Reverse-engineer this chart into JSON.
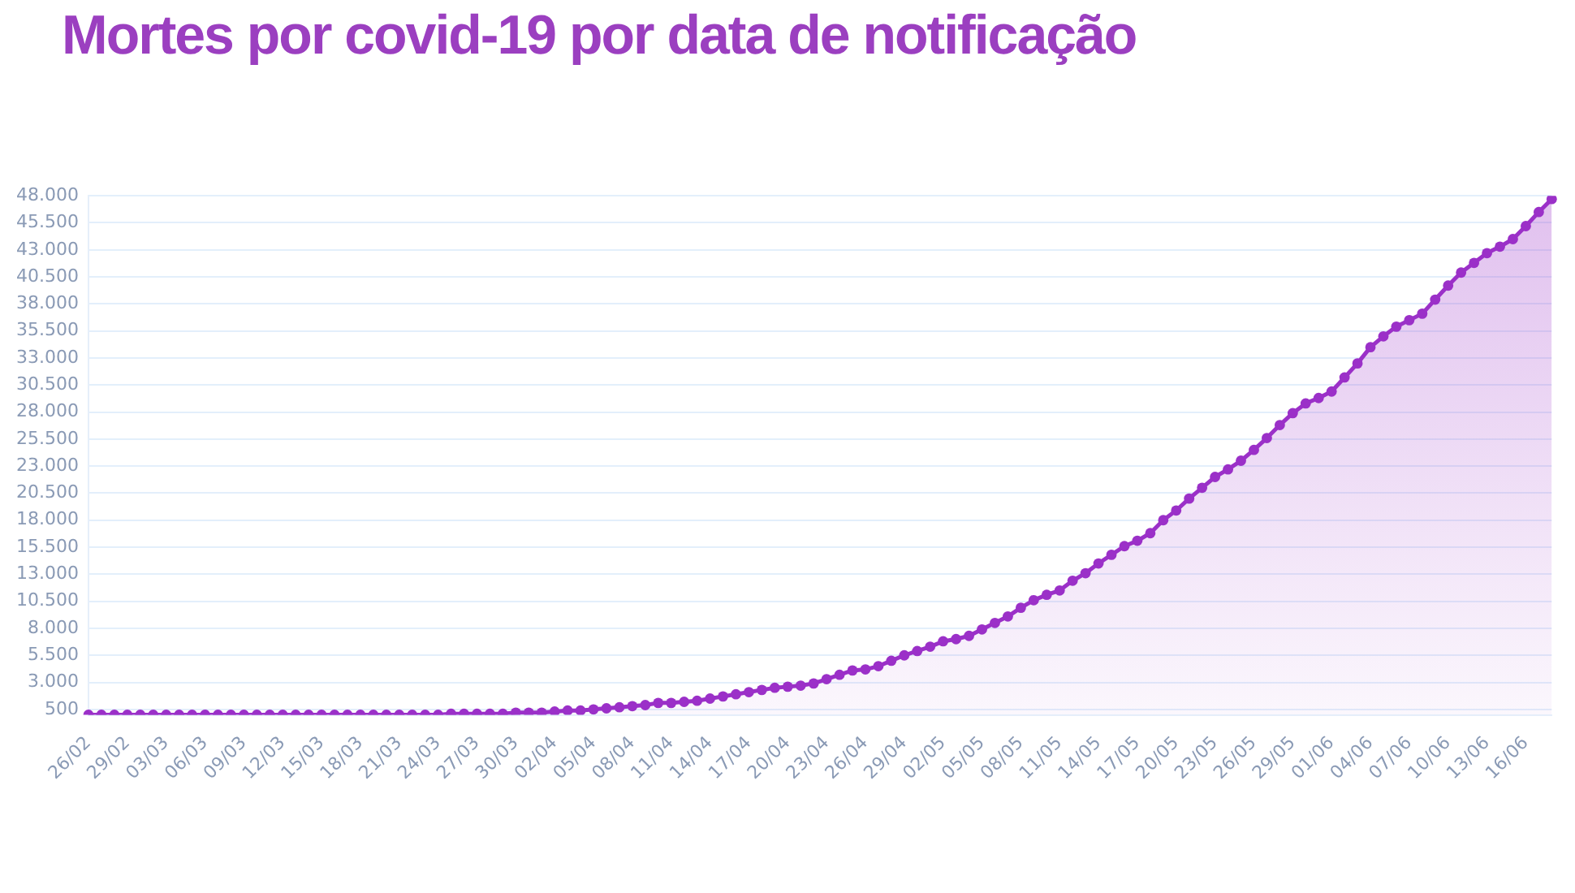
{
  "chart_data": {
    "type": "area",
    "title": "Mortes por covid-19 por data de notificação",
    "categories": [
      "26/02",
      null,
      null,
      "29/02",
      null,
      null,
      "03/03",
      null,
      null,
      "06/03",
      null,
      null,
      "09/03",
      null,
      null,
      "12/03",
      null,
      null,
      "15/03",
      null,
      null,
      "18/03",
      null,
      null,
      "21/03",
      null,
      null,
      "24/03",
      null,
      null,
      "27/03",
      null,
      null,
      "30/03",
      null,
      null,
      "02/04",
      null,
      null,
      "05/04",
      null,
      null,
      "08/04",
      null,
      null,
      "11/04",
      null,
      null,
      "14/04",
      null,
      null,
      "17/04",
      null,
      null,
      "20/04",
      null,
      null,
      "23/04",
      null,
      null,
      "26/04",
      null,
      null,
      "29/04",
      null,
      null,
      "02/05",
      null,
      null,
      "05/05",
      null,
      null,
      "08/05",
      null,
      null,
      "11/05",
      null,
      null,
      "14/05",
      null,
      null,
      "17/05",
      null,
      null,
      "20/05",
      null,
      null,
      "23/05",
      null,
      null,
      "26/05",
      null,
      null,
      "29/05",
      null,
      null,
      "01/06",
      null,
      null,
      "04/06",
      null,
      null,
      "07/06",
      null,
      null,
      "10/06",
      null,
      null,
      "13/06",
      null,
      null,
      "16/06",
      null,
      null
    ],
    "series": [
      {
        "color": "#9b30c8",
        "values": [
          0,
          0,
          0,
          0,
          0,
          0,
          0,
          0,
          0,
          0,
          0,
          0,
          0,
          0,
          0,
          0,
          0,
          0,
          0,
          0,
          0,
          0,
          0,
          0,
          0,
          0,
          0,
          0,
          100,
          100,
          100,
          100,
          100,
          200,
          200,
          200,
          300,
          400,
          400,
          500,
          600,
          700,
          800,
          900,
          1100,
          1100,
          1200,
          1300,
          1500,
          1700,
          1900,
          2100,
          2300,
          2500,
          2600,
          2700,
          2900,
          3300,
          3700,
          4100,
          4200,
          4500,
          5000,
          5500,
          5900,
          6300,
          6800,
          7000,
          7300,
          7900,
          8500,
          9100,
          9900,
          10600,
          11100,
          11500,
          12400,
          13100,
          14000,
          14800,
          15600,
          16100,
          16800,
          18000,
          18900,
          20000,
          21000,
          22000,
          22700,
          23500,
          24500,
          25600,
          26800,
          27900,
          28800,
          29300,
          29900,
          31200,
          32500,
          34000,
          35000,
          35900,
          36500,
          37100,
          38400,
          39700,
          40900,
          41800,
          42700,
          43300,
          44000,
          45200,
          46500,
          47700
        ]
      }
    ],
    "ylim": [
      0,
      48000
    ],
    "yticks": [
      {
        "value": 500,
        "label": "500"
      },
      {
        "value": 3000,
        "label": "3.000"
      },
      {
        "value": 5500,
        "label": "5.500"
      },
      {
        "value": 8000,
        "label": "8.000"
      },
      {
        "value": 10500,
        "label": "10.500"
      },
      {
        "value": 13000,
        "label": "13.000"
      },
      {
        "value": 15500,
        "label": "15.500"
      },
      {
        "value": 18000,
        "label": "18.000"
      },
      {
        "value": 20500,
        "label": "20.500"
      },
      {
        "value": 23000,
        "label": "23.000"
      },
      {
        "value": 25500,
        "label": "25.500"
      },
      {
        "value": 28000,
        "label": "28.000"
      },
      {
        "value": 30500,
        "label": "30.500"
      },
      {
        "value": 33000,
        "label": "33.000"
      },
      {
        "value": 35500,
        "label": "35.500"
      },
      {
        "value": 38000,
        "label": "38.000"
      },
      {
        "value": 40500,
        "label": "40.500"
      },
      {
        "value": 43000,
        "label": "43.000"
      },
      {
        "value": 45500,
        "label": "45.500"
      },
      {
        "value": 48000,
        "label": "48.000"
      }
    ],
    "grid": "y",
    "legend": false,
    "marker": "circle",
    "line_style": "solid"
  }
}
